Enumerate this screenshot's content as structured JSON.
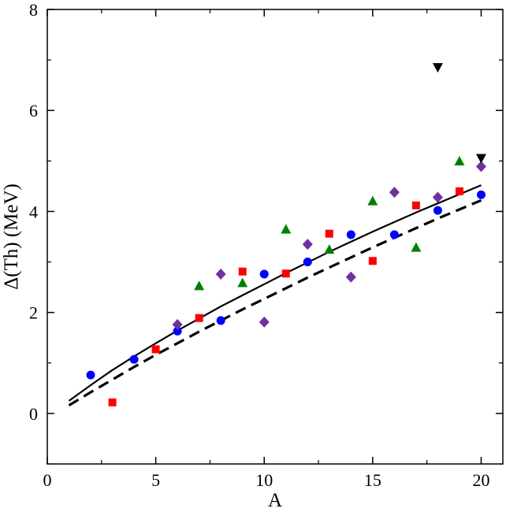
{
  "chart_data": {
    "type": "scatter",
    "title": "",
    "xlabel": "A",
    "ylabel": "Δ(Th) (MeV)",
    "xlim": [
      0,
      21
    ],
    "ylim": [
      -1,
      8
    ],
    "x_ticks": [
      "0",
      "5",
      "10",
      "15",
      "20"
    ],
    "y_ticks": [
      "0",
      "2",
      "4",
      "6",
      "8"
    ],
    "grid": false,
    "legend": "none",
    "series": [
      {
        "marker": "circle",
        "color": "#0000ff",
        "points": [
          [
            2,
            0.76
          ],
          [
            4,
            1.07
          ],
          [
            6,
            1.63
          ],
          [
            8,
            1.84
          ],
          [
            10,
            2.76
          ],
          [
            12,
            3.0
          ],
          [
            14,
            3.54
          ],
          [
            16,
            3.54
          ],
          [
            18,
            4.02
          ],
          [
            20,
            4.33
          ]
        ]
      },
      {
        "marker": "square",
        "color": "#ff0000",
        "points": [
          [
            3,
            0.22
          ],
          [
            5,
            1.27
          ],
          [
            7,
            1.89
          ],
          [
            9,
            2.81
          ],
          [
            11,
            2.77
          ],
          [
            13,
            3.56
          ],
          [
            15,
            3.02
          ],
          [
            17,
            4.12
          ],
          [
            19,
            4.4
          ]
        ]
      },
      {
        "marker": "triangle-up",
        "color": "#008000",
        "points": [
          [
            7,
            2.52
          ],
          [
            9,
            2.58
          ],
          [
            11,
            3.64
          ],
          [
            13,
            3.24
          ],
          [
            15,
            4.2
          ],
          [
            17,
            3.28
          ],
          [
            19,
            4.99
          ]
        ]
      },
      {
        "marker": "diamond",
        "color": "#7030a0",
        "points": [
          [
            6,
            1.76
          ],
          [
            8,
            2.76
          ],
          [
            10,
            1.81
          ],
          [
            12,
            3.35
          ],
          [
            14,
            2.7
          ],
          [
            16,
            4.38
          ],
          [
            18,
            4.28
          ],
          [
            20,
            4.89
          ]
        ]
      },
      {
        "marker": "triangle-down",
        "color": "#000000",
        "points": [
          [
            18,
            6.86
          ],
          [
            20,
            5.06
          ]
        ]
      }
    ],
    "curves": [
      {
        "style": "solid",
        "color": "#000000",
        "points": [
          [
            1,
            0.25
          ],
          [
            2,
            0.56
          ],
          [
            3,
            0.86
          ],
          [
            4,
            1.13
          ],
          [
            5,
            1.39
          ],
          [
            6,
            1.64
          ],
          [
            7,
            1.88
          ],
          [
            8,
            2.12
          ],
          [
            9,
            2.34
          ],
          [
            10,
            2.56
          ],
          [
            11,
            2.78
          ],
          [
            12,
            2.99
          ],
          [
            13,
            3.2
          ],
          [
            14,
            3.4
          ],
          [
            15,
            3.6
          ],
          [
            16,
            3.79
          ],
          [
            17,
            3.98
          ],
          [
            18,
            4.16
          ],
          [
            19,
            4.34
          ],
          [
            20,
            4.52
          ]
        ]
      },
      {
        "style": "dashed",
        "color": "#000000",
        "points": [
          [
            1,
            0.16
          ],
          [
            2,
            0.42
          ],
          [
            3,
            0.67
          ],
          [
            4,
            0.92
          ],
          [
            5,
            1.16
          ],
          [
            6,
            1.39
          ],
          [
            7,
            1.62
          ],
          [
            8,
            1.84
          ],
          [
            9,
            2.06
          ],
          [
            10,
            2.27
          ],
          [
            11,
            2.48
          ],
          [
            12,
            2.69
          ],
          [
            13,
            2.89
          ],
          [
            14,
            3.09
          ],
          [
            15,
            3.29
          ],
          [
            16,
            3.48
          ],
          [
            17,
            3.67
          ],
          [
            18,
            3.86
          ],
          [
            19,
            4.04
          ],
          [
            20,
            4.22
          ]
        ]
      }
    ]
  }
}
